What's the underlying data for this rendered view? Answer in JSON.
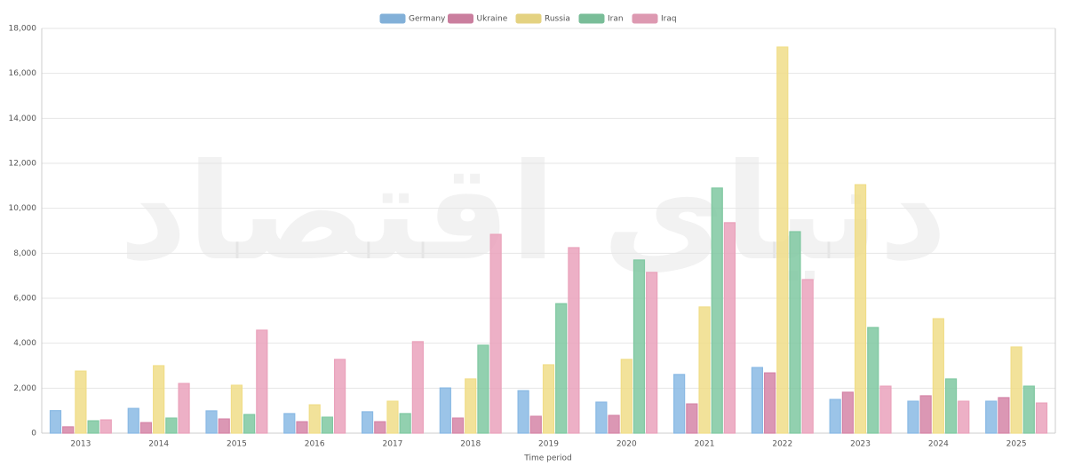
{
  "chart_data": {
    "type": "bar",
    "watermark": "دنیای اقتصاد",
    "x_label": "Time period",
    "categories": [
      "2013",
      "2014",
      "2015",
      "2016",
      "2017",
      "2018",
      "2019",
      "2020",
      "2021",
      "2022",
      "2023",
      "2024",
      "2025"
    ],
    "series": [
      {
        "name": "Germany",
        "color": "#90c3f0",
        "values": [
          1000,
          1100,
          990,
          870,
          950,
          2010,
          1890,
          1380,
          2610,
          2920,
          1500,
          1420,
          1420
        ]
      },
      {
        "name": "Ukraine",
        "color": "#e08cb0",
        "values": [
          280,
          470,
          630,
          510,
          510,
          670,
          750,
          790,
          1300,
          2680,
          1820,
          1660,
          1580
        ]
      },
      {
        "name": "Russia",
        "color": "#fde98f",
        "values": [
          2760,
          3000,
          2130,
          1260,
          1420,
          2410,
          3040,
          3280,
          5610,
          17170,
          11050,
          5090,
          3830
        ]
      },
      {
        "name": "Iran",
        "color": "#86d2a9",
        "values": [
          550,
          670,
          830,
          710,
          870,
          3910,
          5760,
          7700,
          10900,
          8960,
          4700,
          2410,
          2090
        ]
      },
      {
        "name": "Iraq",
        "color": "#f6aac5",
        "values": [
          590,
          2210,
          4580,
          3280,
          4070,
          8840,
          8250,
          7150,
          9360,
          6830,
          2090,
          1420,
          1340
        ]
      }
    ],
    "ylim": [
      0,
      18000
    ],
    "yticks": [
      0,
      {
        "value": 2000,
        "label": "2,000"
      },
      {
        "value": 4000,
        "label": "4,000"
      },
      {
        "value": 6000,
        "label": "6,000"
      },
      {
        "value": 8000,
        "label": "8,000"
      },
      {
        "value": 10000,
        "label": "10,000"
      },
      {
        "value": 12000,
        "label": "12,000"
      },
      {
        "value": 14000,
        "label": "14,000"
      },
      {
        "value": 16000,
        "label": "16,000"
      },
      {
        "value": 18000,
        "label": "18,000"
      }
    ],
    "grid": true,
    "legend": "top"
  }
}
